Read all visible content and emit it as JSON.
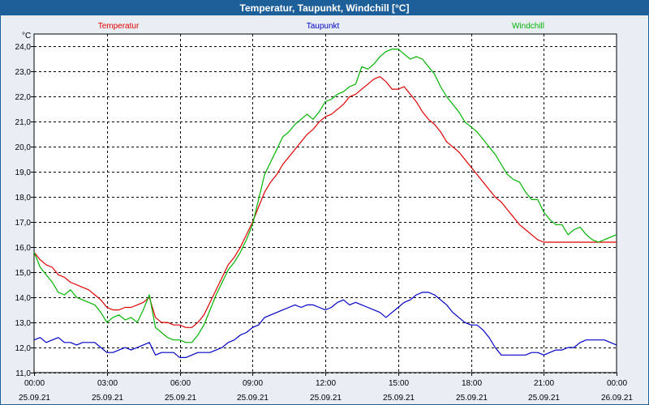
{
  "window": {
    "title": "Temperatur, Taupunkt, Windchill [°C]"
  },
  "chart_data": {
    "type": "line",
    "title": "Temperatur, Taupunkt, Windchill [°C]",
    "ylabel": "°C",
    "ylim": [
      11.0,
      24.5
    ],
    "yticks": [
      "11,0",
      "12,0",
      "13,0",
      "14,0",
      "15,0",
      "16,0",
      "17,0",
      "18,0",
      "19,0",
      "20,0",
      "21,0",
      "22,0",
      "23,0",
      "24,0"
    ],
    "xlim": [
      0,
      24
    ],
    "xticks": [
      {
        "time": "00:00",
        "date": "25.09.21"
      },
      {
        "time": "03:00",
        "date": "25.09.21"
      },
      {
        "time": "06:00",
        "date": "25.09.21"
      },
      {
        "time": "09:00",
        "date": "25.09.21"
      },
      {
        "time": "12:00",
        "date": "25.09.21"
      },
      {
        "time": "15:00",
        "date": "25.09.21"
      },
      {
        "time": "18:00",
        "date": "25.09.21"
      },
      {
        "time": "21:00",
        "date": "25.09.21"
      },
      {
        "time": "00:00",
        "date": "26.09.21"
      }
    ],
    "grid": true,
    "legend_placement": "top",
    "series": [
      {
        "name": "Temperatur",
        "color": "#e00000",
        "x": [
          0,
          0.25,
          0.5,
          0.75,
          1,
          1.25,
          1.5,
          1.75,
          2,
          2.25,
          2.5,
          2.75,
          3,
          3.25,
          3.5,
          3.75,
          4,
          4.25,
          4.5,
          4.75,
          5,
          5.25,
          5.5,
          5.75,
          6,
          6.25,
          6.5,
          6.75,
          7,
          7.25,
          7.5,
          7.75,
          8,
          8.25,
          8.5,
          8.75,
          9,
          9.25,
          9.5,
          9.75,
          10,
          10.25,
          10.5,
          10.75,
          11,
          11.25,
          11.5,
          11.75,
          12,
          12.25,
          12.5,
          12.75,
          13,
          13.25,
          13.5,
          13.75,
          14,
          14.25,
          14.5,
          14.75,
          15,
          15.25,
          15.5,
          15.75,
          16,
          16.25,
          16.5,
          16.75,
          17,
          17.25,
          17.5,
          17.75,
          18,
          18.25,
          18.5,
          18.75,
          19,
          19.25,
          19.5,
          19.75,
          20,
          20.25,
          20.5,
          20.75,
          21,
          21.25,
          21.5,
          21.75,
          22,
          22.25,
          22.5,
          22.75,
          23,
          23.25,
          23.5,
          23.75,
          24
        ],
        "values": [
          15.8,
          15.5,
          15.3,
          15.2,
          14.9,
          14.8,
          14.6,
          14.5,
          14.4,
          14.3,
          14.1,
          13.9,
          13.6,
          13.5,
          13.5,
          13.6,
          13.6,
          13.7,
          13.8,
          14.0,
          13.2,
          13.0,
          13.0,
          12.9,
          12.9,
          12.8,
          12.8,
          13.0,
          13.3,
          13.8,
          14.3,
          14.8,
          15.3,
          15.6,
          16.0,
          16.5,
          17.0,
          17.6,
          18.2,
          18.6,
          18.9,
          19.3,
          19.6,
          19.9,
          20.2,
          20.5,
          20.7,
          21.0,
          21.2,
          21.3,
          21.5,
          21.7,
          22.0,
          22.1,
          22.3,
          22.5,
          22.7,
          22.8,
          22.6,
          22.3,
          22.3,
          22.4,
          22.1,
          21.8,
          21.4,
          21.1,
          20.9,
          20.6,
          20.2,
          20.0,
          19.8,
          19.5,
          19.2,
          18.9,
          18.6,
          18.3,
          18.0,
          17.8,
          17.5,
          17.2,
          16.9,
          16.7,
          16.5,
          16.3,
          16.2,
          16.2,
          16.2,
          16.2,
          16.2,
          16.2,
          16.2,
          16.2,
          16.2,
          16.2,
          16.2,
          16.2,
          16.2
        ]
      },
      {
        "name": "Taupunkt",
        "color": "#0000c8",
        "x": [
          0,
          0.25,
          0.5,
          0.75,
          1,
          1.25,
          1.5,
          1.75,
          2,
          2.25,
          2.5,
          2.75,
          3,
          3.25,
          3.5,
          3.75,
          4,
          4.25,
          4.5,
          4.75,
          5,
          5.25,
          5.5,
          5.75,
          6,
          6.25,
          6.5,
          6.75,
          7,
          7.25,
          7.5,
          7.75,
          8,
          8.25,
          8.5,
          8.75,
          9,
          9.25,
          9.5,
          9.75,
          10,
          10.25,
          10.5,
          10.75,
          11,
          11.25,
          11.5,
          11.75,
          12,
          12.25,
          12.5,
          12.75,
          13,
          13.25,
          13.5,
          13.75,
          14,
          14.25,
          14.5,
          14.75,
          15,
          15.25,
          15.5,
          15.75,
          16,
          16.25,
          16.5,
          16.75,
          17,
          17.25,
          17.5,
          17.75,
          18,
          18.25,
          18.5,
          18.75,
          19,
          19.25,
          19.5,
          19.75,
          20,
          20.25,
          20.5,
          20.75,
          21,
          21.25,
          21.5,
          21.75,
          22,
          22.25,
          22.5,
          22.75,
          23,
          23.25,
          23.5,
          23.75,
          24
        ],
        "values": [
          12.3,
          12.4,
          12.2,
          12.3,
          12.4,
          12.2,
          12.2,
          12.1,
          12.2,
          12.2,
          12.2,
          12.0,
          11.8,
          11.8,
          11.9,
          12.0,
          11.9,
          12.0,
          12.1,
          12.2,
          11.7,
          11.8,
          11.8,
          11.8,
          11.6,
          11.6,
          11.7,
          11.8,
          11.8,
          11.8,
          11.9,
          12.0,
          12.2,
          12.3,
          12.5,
          12.6,
          12.8,
          12.9,
          13.2,
          13.3,
          13.4,
          13.5,
          13.6,
          13.7,
          13.6,
          13.7,
          13.7,
          13.6,
          13.5,
          13.6,
          13.8,
          13.9,
          13.7,
          13.8,
          13.7,
          13.6,
          13.5,
          13.4,
          13.2,
          13.4,
          13.6,
          13.8,
          13.9,
          14.1,
          14.2,
          14.2,
          14.1,
          13.9,
          13.7,
          13.4,
          13.2,
          13.0,
          12.9,
          12.9,
          12.7,
          12.4,
          12.0,
          11.7,
          11.7,
          11.7,
          11.7,
          11.7,
          11.8,
          11.8,
          11.7,
          11.8,
          11.9,
          11.9,
          12.0,
          12.0,
          12.2,
          12.3,
          12.3,
          12.3,
          12.3,
          12.2,
          12.1
        ]
      },
      {
        "name": "Windchill",
        "color": "#00b400",
        "x": [
          0,
          0.25,
          0.5,
          0.75,
          1,
          1.25,
          1.5,
          1.75,
          2,
          2.25,
          2.5,
          2.75,
          3,
          3.25,
          3.5,
          3.75,
          4,
          4.25,
          4.5,
          4.75,
          5,
          5.25,
          5.5,
          5.75,
          6,
          6.25,
          6.5,
          6.75,
          7,
          7.25,
          7.5,
          7.75,
          8,
          8.25,
          8.5,
          8.75,
          9,
          9.25,
          9.5,
          9.75,
          10,
          10.25,
          10.5,
          10.75,
          11,
          11.25,
          11.5,
          11.75,
          12,
          12.25,
          12.5,
          12.75,
          13,
          13.25,
          13.5,
          13.75,
          14,
          14.25,
          14.5,
          14.75,
          15,
          15.25,
          15.5,
          15.75,
          16,
          16.25,
          16.5,
          16.75,
          17,
          17.25,
          17.5,
          17.75,
          18,
          18.25,
          18.5,
          18.75,
          19,
          19.25,
          19.5,
          19.75,
          20,
          20.25,
          20.5,
          20.75,
          21,
          21.25,
          21.5,
          21.75,
          22,
          22.25,
          22.5,
          22.75,
          23,
          23.25,
          23.5,
          23.75,
          24
        ],
        "values": [
          15.8,
          15.2,
          14.9,
          14.6,
          14.2,
          14.1,
          14.3,
          14.0,
          13.9,
          13.8,
          13.7,
          13.4,
          13.0,
          13.2,
          13.3,
          13.1,
          13.2,
          13.0,
          13.5,
          14.1,
          12.8,
          12.6,
          12.4,
          12.3,
          12.3,
          12.2,
          12.2,
          12.5,
          12.9,
          13.5,
          14.1,
          14.6,
          15.1,
          15.4,
          15.8,
          16.3,
          16.9,
          17.9,
          18.9,
          19.4,
          19.9,
          20.4,
          20.6,
          20.9,
          21.1,
          21.3,
          21.1,
          21.4,
          21.8,
          21.9,
          22.1,
          22.2,
          22.4,
          22.5,
          23.2,
          23.1,
          23.3,
          23.6,
          23.8,
          23.9,
          23.9,
          23.7,
          23.5,
          23.6,
          23.5,
          23.2,
          22.9,
          22.4,
          22.0,
          21.7,
          21.4,
          21.0,
          20.8,
          20.6,
          20.3,
          20.0,
          19.7,
          19.3,
          18.9,
          18.7,
          18.6,
          18.2,
          17.9,
          17.9,
          17.4,
          17.1,
          16.9,
          16.9,
          16.5,
          16.7,
          16.8,
          16.5,
          16.3,
          16.2,
          16.3,
          16.4,
          16.5
        ]
      }
    ]
  }
}
